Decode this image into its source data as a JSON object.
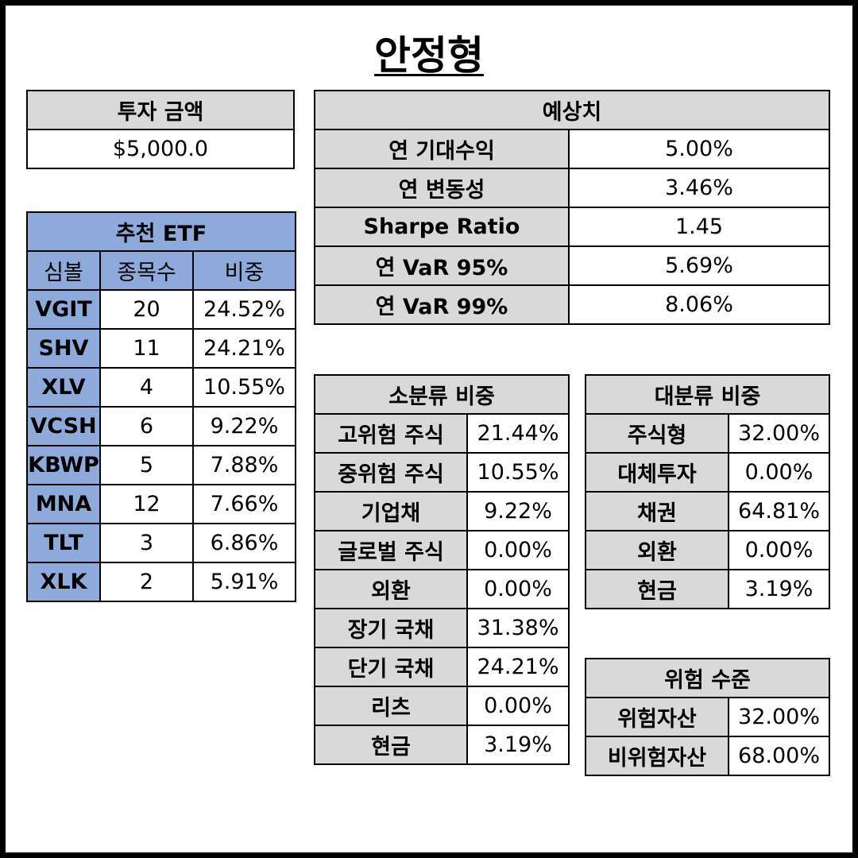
{
  "title": "안정형",
  "investment": {
    "header": "투자 금액",
    "value": "$5,000.0"
  },
  "forecast": {
    "header": "예상치",
    "rows": [
      {
        "label": "연 기대수익",
        "value": "5.00%"
      },
      {
        "label": "연 변동성",
        "value": "3.46%"
      },
      {
        "label": "Sharpe Ratio",
        "value": "1.45"
      },
      {
        "label": "연 VaR 95%",
        "value": "5.69%"
      },
      {
        "label": "연 VaR 99%",
        "value": "8.06%"
      }
    ]
  },
  "etf": {
    "header": "추천 ETF",
    "columns": [
      "심볼",
      "종목수",
      "비중"
    ],
    "rows": [
      {
        "symbol": "VGIT",
        "count": "20",
        "weight": "24.52%"
      },
      {
        "symbol": "SHV",
        "count": "11",
        "weight": "24.21%"
      },
      {
        "symbol": "XLV",
        "count": "4",
        "weight": "10.55%"
      },
      {
        "symbol": "VCSH",
        "count": "6",
        "weight": "9.22%"
      },
      {
        "symbol": "KBWP",
        "count": "5",
        "weight": "7.88%"
      },
      {
        "symbol": "MNA",
        "count": "12",
        "weight": "7.66%"
      },
      {
        "symbol": "TLT",
        "count": "3",
        "weight": "6.86%"
      },
      {
        "symbol": "XLK",
        "count": "2",
        "weight": "5.91%"
      }
    ]
  },
  "sub_category": {
    "header": "소분류 비중",
    "rows": [
      {
        "label": "고위험 주식",
        "value": "21.44%"
      },
      {
        "label": "중위험 주식",
        "value": "10.55%"
      },
      {
        "label": "기업채",
        "value": "9.22%"
      },
      {
        "label": "글로벌 주식",
        "value": "0.00%"
      },
      {
        "label": "외환",
        "value": "0.00%"
      },
      {
        "label": "장기 국채",
        "value": "31.38%"
      },
      {
        "label": "단기 국채",
        "value": "24.21%"
      },
      {
        "label": "리츠",
        "value": "0.00%"
      },
      {
        "label": "현금",
        "value": "3.19%"
      }
    ]
  },
  "main_category": {
    "header": "대분류 비중",
    "rows": [
      {
        "label": "주식형",
        "value": "32.00%"
      },
      {
        "label": "대체투자",
        "value": "0.00%"
      },
      {
        "label": "채권",
        "value": "64.81%"
      },
      {
        "label": "외환",
        "value": "0.00%"
      },
      {
        "label": "현금",
        "value": "3.19%"
      }
    ]
  },
  "risk_level": {
    "header": "위험 수준",
    "rows": [
      {
        "label": "위험자산",
        "value": "32.00%"
      },
      {
        "label": "비위험자산",
        "value": "68.00%"
      }
    ]
  },
  "colors": {
    "header_gray": "#d9d9d9",
    "etf_blue": "#8eaadb",
    "frame": "#000000"
  }
}
